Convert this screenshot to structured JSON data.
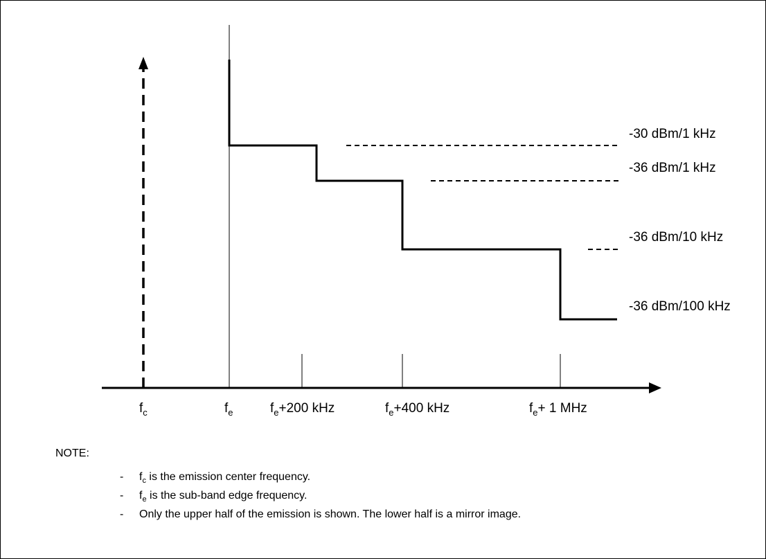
{
  "diagram": {
    "vertical_axis_labels": {
      "fc": {
        "main": "f",
        "sub": "c"
      },
      "fe": {
        "main": "f",
        "sub": "e"
      }
    },
    "x_tick_labels": [
      {
        "main": "f",
        "sub": "e",
        "rest": "+200 kHz"
      },
      {
        "main": "f",
        "sub": "e",
        "rest": "+400 kHz"
      },
      {
        "main": "f",
        "sub": "e",
        "rest": "+ 1 MHz"
      }
    ],
    "limit_labels": [
      "-30 dBm/1 kHz",
      "-36 dBm/1 kHz",
      "-36 dBm/10 kHz",
      "-36 dBm/100 kHz"
    ]
  },
  "note": {
    "title": "NOTE:",
    "items": [
      {
        "main": "f",
        "sub": "c",
        "text": " is the emission center frequency."
      },
      {
        "main": "f",
        "sub": "e",
        "text": " is the sub-band edge frequency."
      },
      {
        "main": "",
        "sub": "",
        "text": "Only the upper half of the emission is shown. The lower half is a mirror image."
      }
    ]
  }
}
